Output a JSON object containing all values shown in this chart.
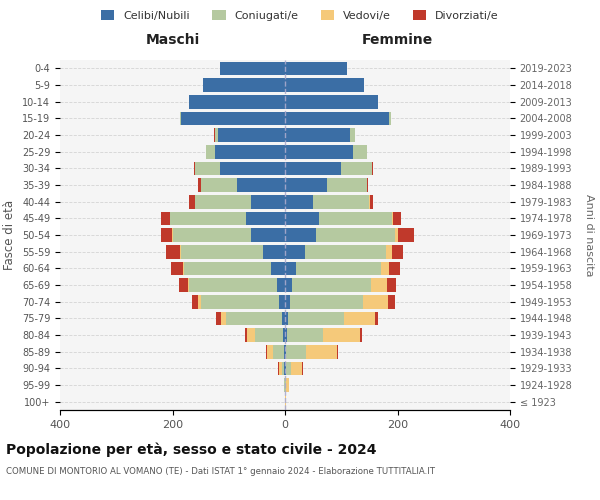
{
  "age_groups": [
    "100+",
    "95-99",
    "90-94",
    "85-89",
    "80-84",
    "75-79",
    "70-74",
    "65-69",
    "60-64",
    "55-59",
    "50-54",
    "45-49",
    "40-44",
    "35-39",
    "30-34",
    "25-29",
    "20-24",
    "15-19",
    "10-14",
    "5-9",
    "0-4"
  ],
  "birth_years": [
    "≤ 1923",
    "1924-1928",
    "1929-1933",
    "1934-1938",
    "1939-1943",
    "1944-1948",
    "1949-1953",
    "1954-1958",
    "1959-1963",
    "1964-1968",
    "1969-1973",
    "1974-1978",
    "1979-1983",
    "1984-1988",
    "1989-1993",
    "1994-1998",
    "1999-2003",
    "2004-2008",
    "2009-2013",
    "2014-2018",
    "2019-2023"
  ],
  "males": {
    "celibi": [
      0,
      0,
      1,
      2,
      3,
      5,
      10,
      15,
      25,
      40,
      60,
      70,
      60,
      85,
      115,
      125,
      120,
      185,
      170,
      145,
      115
    ],
    "coniugati": [
      0,
      1,
      5,
      20,
      50,
      100,
      140,
      155,
      155,
      145,
      140,
      135,
      100,
      65,
      45,
      15,
      5,
      2,
      1,
      0,
      0
    ],
    "vedovi": [
      0,
      1,
      5,
      10,
      15,
      8,
      5,
      3,
      2,
      1,
      1,
      0,
      0,
      0,
      0,
      0,
      0,
      0,
      0,
      0,
      0
    ],
    "divorziati": [
      0,
      0,
      1,
      2,
      3,
      10,
      10,
      15,
      20,
      25,
      20,
      15,
      10,
      5,
      2,
      1,
      1,
      0,
      0,
      0,
      0
    ]
  },
  "females": {
    "nubili": [
      0,
      0,
      1,
      2,
      3,
      5,
      8,
      12,
      20,
      35,
      55,
      60,
      50,
      75,
      100,
      120,
      115,
      185,
      165,
      140,
      110
    ],
    "coniugate": [
      0,
      2,
      10,
      35,
      65,
      100,
      130,
      140,
      150,
      145,
      140,
      130,
      100,
      70,
      55,
      25,
      10,
      3,
      1,
      0,
      0
    ],
    "vedove": [
      1,
      5,
      20,
      55,
      65,
      55,
      45,
      30,
      15,
      10,
      5,
      2,
      1,
      0,
      0,
      0,
      0,
      0,
      0,
      0,
      0
    ],
    "divorziate": [
      0,
      0,
      1,
      2,
      3,
      5,
      12,
      15,
      20,
      20,
      30,
      15,
      5,
      3,
      2,
      1,
      0,
      0,
      0,
      0,
      0
    ]
  },
  "colors": {
    "celibi": "#3b6ea5",
    "coniugati": "#b5c9a0",
    "vedovi": "#f5c97a",
    "divorziati": "#c0392b"
  },
  "xlim": 400,
  "title": "Popolazione per età, sesso e stato civile - 2024",
  "subtitle": "COMUNE DI MONTORIO AL VOMANO (TE) - Dati ISTAT 1° gennaio 2024 - Elaborazione TUTTITALIA.IT",
  "xlabel_left": "Maschi",
  "xlabel_right": "Femmine",
  "ylabel_left": "Fasce di età",
  "ylabel_right": "Anni di nascita",
  "legend_labels": [
    "Celibi/Nubili",
    "Coniugati/e",
    "Vedovi/e",
    "Divorziati/e"
  ]
}
